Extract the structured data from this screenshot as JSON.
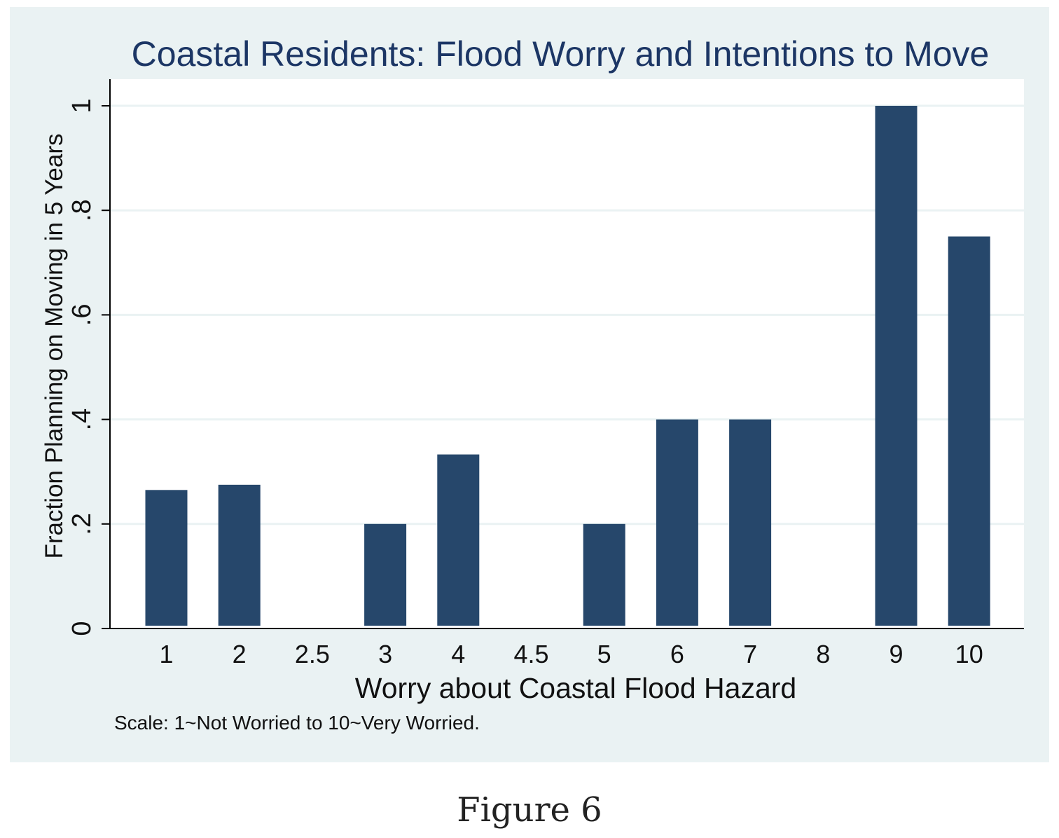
{
  "figure_caption": "Figure 6",
  "colors": {
    "panel_background": "#eaf2f3",
    "plot_background": "#ffffff",
    "bar_fill": "#26476b",
    "title": "#1c3665",
    "gridline": "#eaf2f3",
    "axis": "#000000",
    "text": "#111111"
  },
  "chart_data": {
    "type": "bar",
    "title": "Coastal Residents: Flood Worry and Intentions to Move",
    "xlabel": "Worry about Coastal Flood Hazard",
    "ylabel": "Fraction Planning on Moving in 5 Years",
    "note": "Scale: 1~Not Worried to 10~Very Worried.",
    "categories": [
      "1",
      "2",
      "2.5",
      "3",
      "4",
      "4.5",
      "5",
      "6",
      "7",
      "8",
      "9",
      "10"
    ],
    "values": [
      0.265,
      0.275,
      null,
      0.2,
      0.333,
      null,
      0.2,
      0.4,
      0.4,
      null,
      1.0,
      0.75
    ],
    "ylim": [
      0,
      1
    ],
    "yticks": [
      0,
      0.2,
      0.4,
      0.6,
      0.8,
      1
    ],
    "ytick_labels": [
      "0",
      ".2",
      ".4",
      ".6",
      ".8",
      "1"
    ],
    "grid": true,
    "legend": "none"
  }
}
